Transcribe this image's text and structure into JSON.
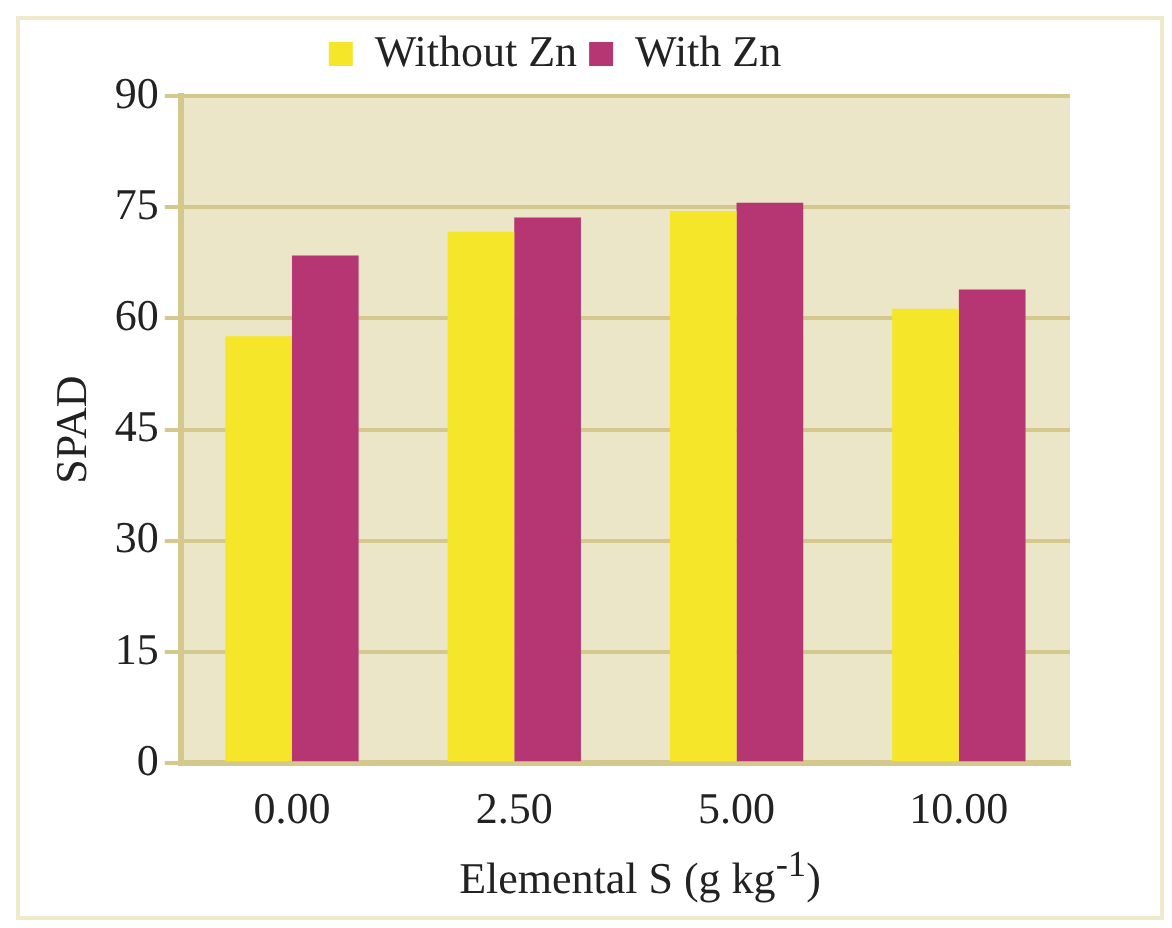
{
  "chart_data": {
    "type": "bar",
    "xlabel": "Elemental S (g kg$^{-1}$)",
    "ylabel": "SPAD",
    "categories": [
      "0.00",
      "2.50",
      "5.00",
      "10.00"
    ],
    "series": [
      {
        "name": "Without Zn",
        "color": "#f5e629",
        "values": [
          57.6,
          71.7,
          74.5,
          61.3
        ]
      },
      {
        "name": "With Zn",
        "color": "#b53672",
        "values": [
          68.5,
          73.6,
          75.6,
          63.9
        ]
      }
    ],
    "ylim": [
      0,
      90
    ],
    "yticks": [
      0,
      15,
      30,
      45,
      60,
      75,
      90
    ],
    "grid": "y",
    "legend": "top"
  }
}
